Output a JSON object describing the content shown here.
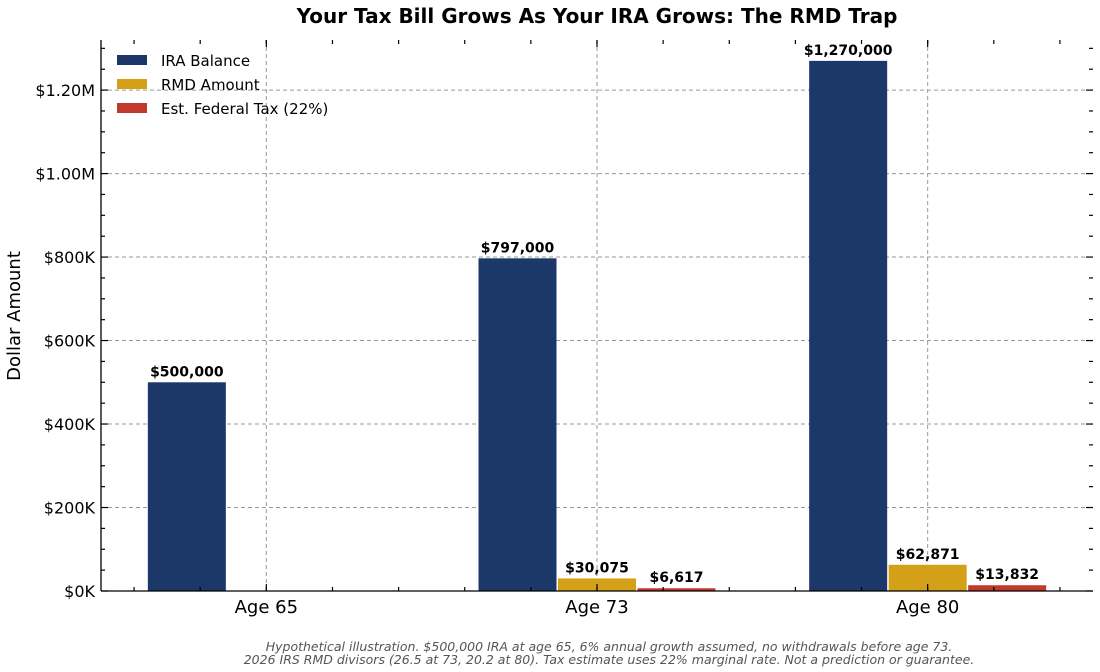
{
  "chart_data": {
    "type": "bar",
    "title": "Your Tax Bill Grows As Your IRA Grows: The RMD Trap",
    "xlabel": "",
    "ylabel": "Dollar Amount",
    "categories": [
      "Age 65",
      "Age 73",
      "Age 80"
    ],
    "ylim": [
      0,
      1320000
    ],
    "yticks": [
      0,
      200000,
      400000,
      600000,
      800000,
      1000000,
      1200000
    ],
    "ytick_labels": [
      "$0K",
      "$200K",
      "$400K",
      "$600K",
      "$800K",
      "$1.00M",
      "$1.20M"
    ],
    "grid": true,
    "legend_position": "top-left",
    "series": [
      {
        "name": "IRA Balance",
        "color": "#1c3869",
        "values": [
          500000,
          797000,
          1270000
        ],
        "labels": [
          "$500,000",
          "$797,000",
          "$1,270,000"
        ]
      },
      {
        "name": "RMD Amount",
        "color": "#d4a017",
        "values": [
          0,
          30075,
          62871
        ],
        "labels": [
          "",
          "$30,075",
          "$62,871"
        ]
      },
      {
        "name": "Est. Federal Tax (22%)",
        "color": "#c0392b",
        "values": [
          0,
          6617,
          13832
        ],
        "labels": [
          "",
          "$6,617",
          "$13,832"
        ]
      }
    ],
    "footnote_lines": [
      "Hypothetical illustration. $500,000 IRA at age 65, 6% annual growth assumed, no withdrawals before age 73.",
      "2026 IRS RMD divisors (26.5 at 73, 20.2 at 80). Tax estimate uses 22% marginal rate. Not a prediction or guarantee."
    ]
  }
}
